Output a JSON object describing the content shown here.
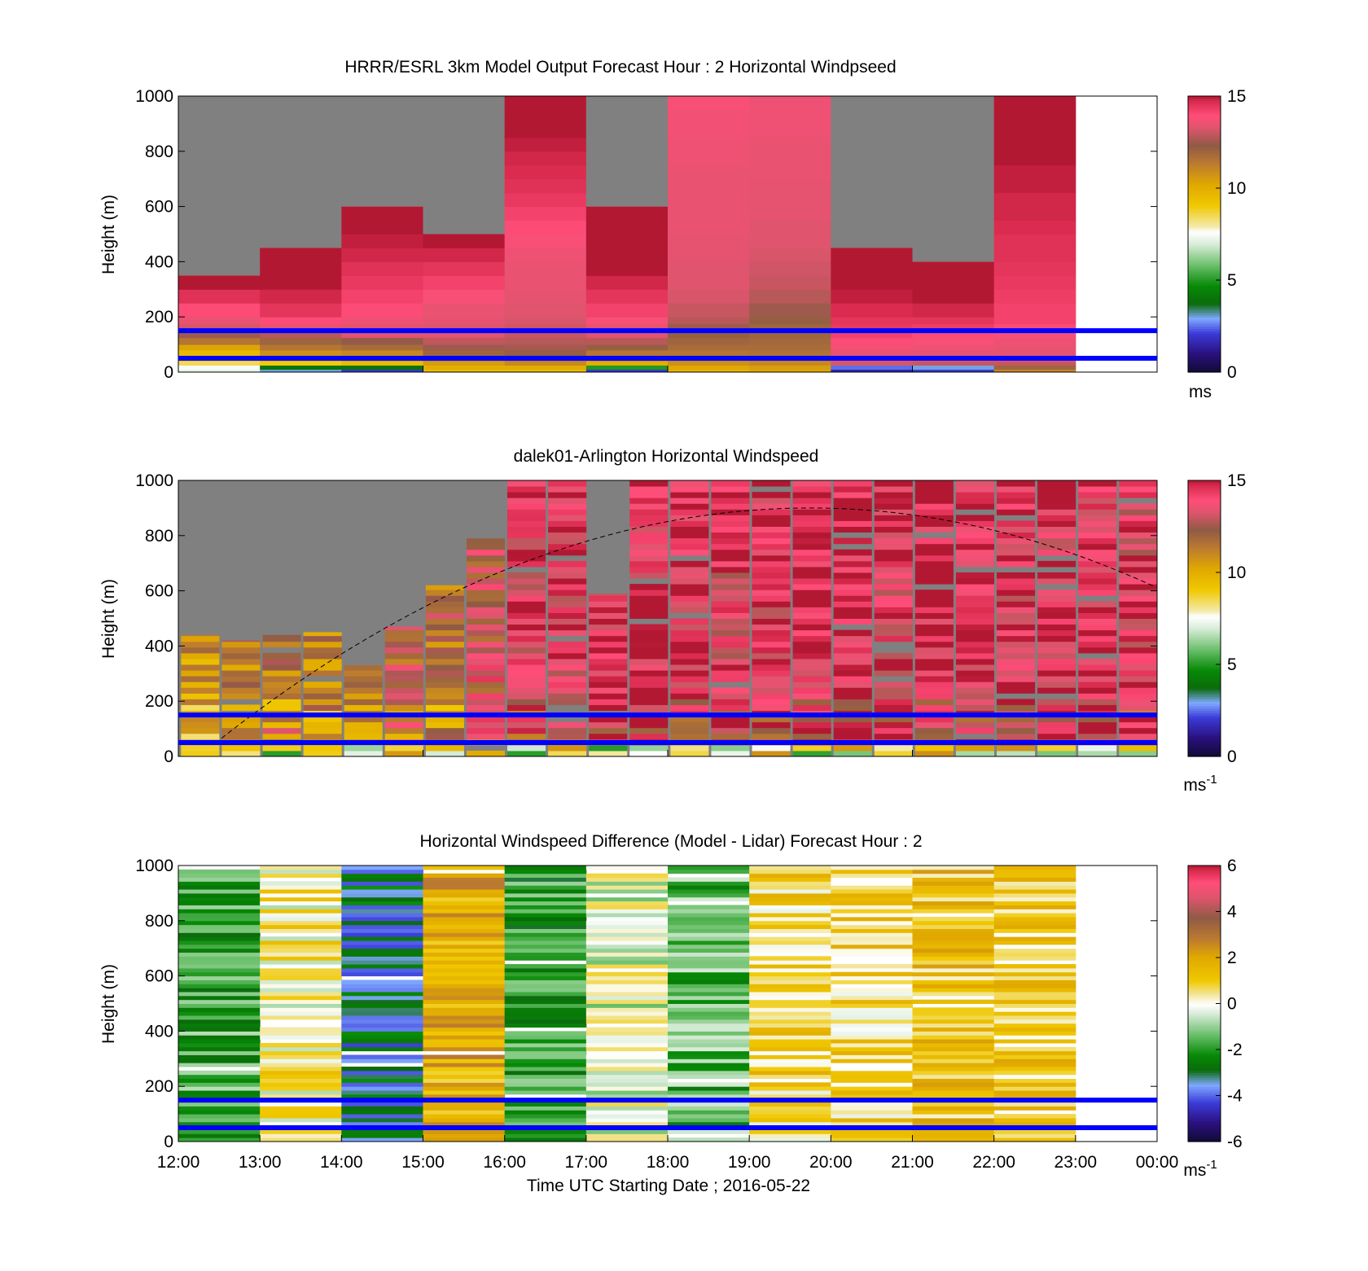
{
  "chart_data": [
    {
      "type": "heatmap",
      "title": "HRRR/ESRL 3km Model Output   Forecast Hour : 2 Horizontal Windpseed",
      "ylabel": "Height (m)",
      "xlabel": "",
      "ylim": [
        0,
        1000
      ],
      "yticks": [
        "0",
        "200",
        "400",
        "600",
        "800",
        "1000"
      ],
      "colorbar": {
        "min": 0,
        "max": 15,
        "ticks": [
          "0",
          "5",
          "10",
          "15"
        ],
        "unit": "ms",
        "unit_sup": ""
      },
      "reference_lines_m": [
        50,
        150
      ],
      "hours": [
        12,
        13,
        14,
        15,
        16,
        17,
        18,
        19,
        20,
        21,
        22
      ],
      "column_top_m": [
        350,
        450,
        600,
        500,
        1000,
        600,
        1000,
        1000,
        450,
        400,
        1000
      ],
      "levels_m": [
        10,
        25,
        40,
        60,
        80,
        100,
        125,
        150,
        175,
        200,
        250,
        300,
        350,
        400,
        450,
        500,
        550,
        600,
        650,
        700,
        750,
        800,
        850,
        900,
        950,
        1000
      ],
      "windspeed_ms": [
        [
          7.2,
          7.5,
          8.5,
          9.0,
          9.6,
          10.3,
          11.5,
          12.5,
          13.2,
          13.5,
          14.0,
          14.6,
          15.0
        ],
        [
          3.0,
          4.0,
          9.0,
          10.0,
          10.8,
          11.5,
          12.0,
          12.8,
          13.5,
          14.0,
          14.5,
          14.8,
          15.0,
          15.0,
          15.0
        ],
        [
          2.0,
          4.0,
          9.5,
          10.5,
          11.0,
          11.8,
          12.4,
          13.3,
          13.4,
          13.6,
          14.0,
          14.2,
          14.4,
          14.6,
          14.8,
          14.9,
          15.0,
          15.0
        ],
        [
          9.5,
          10.0,
          10.5,
          11.2,
          12.0,
          12.5,
          12.9,
          13.3,
          13.3,
          13.4,
          13.5,
          13.8,
          14.2,
          14.5,
          14.8,
          15.0
        ],
        [
          9.5,
          10.0,
          11.0,
          11.5,
          12.2,
          12.6,
          12.8,
          13.0,
          13.1,
          13.2,
          13.3,
          13.4,
          13.5,
          13.5,
          13.6,
          13.8,
          14.0,
          14.2,
          14.4,
          14.6,
          14.7,
          14.8,
          14.9,
          15.0,
          15.0,
          15.0
        ],
        [
          2.0,
          5.0,
          10.0,
          11.0,
          11.5,
          12.2,
          12.8,
          13.3,
          13.5,
          13.8,
          14.2,
          14.5,
          14.8,
          15.0,
          15.0,
          15.0,
          15.0,
          15.0
        ],
        [
          9.8,
          10.2,
          10.8,
          11.2,
          11.5,
          11.8,
          12.0,
          12.2,
          12.5,
          12.8,
          13.0,
          13.2,
          13.3,
          13.3,
          13.4,
          13.4,
          13.5,
          13.5,
          13.5,
          13.5,
          13.5,
          13.6,
          13.6,
          13.7,
          13.7,
          13.8
        ],
        [
          10.2,
          10.5,
          11.0,
          11.4,
          11.6,
          11.8,
          11.9,
          12.0,
          12.0,
          12.2,
          12.5,
          12.8,
          13.0,
          13.1,
          13.2,
          13.3,
          13.3,
          13.4,
          13.4,
          13.4,
          13.5,
          13.5,
          13.5,
          13.6,
          13.6,
          13.6
        ],
        [
          1.5,
          2.5,
          13.2,
          13.4,
          13.5,
          13.7,
          14.0,
          14.2,
          14.4,
          14.5,
          14.7,
          14.9,
          15.0,
          15.0,
          15.0
        ],
        [
          2.0,
          3.0,
          13.0,
          13.2,
          13.4,
          13.6,
          13.8,
          14.0,
          14.3,
          14.5,
          14.8,
          15.0,
          15.0,
          15.0
        ],
        [
          11.0,
          12.0,
          13.0,
          13.2,
          13.4,
          13.5,
          13.6,
          13.8,
          14.0,
          14.2,
          14.2,
          14.3,
          14.4,
          14.5,
          14.6,
          14.6,
          14.7,
          14.8,
          14.8,
          14.9,
          14.9,
          15.0,
          15.0,
          15.0,
          15.0,
          15.0
        ]
      ]
    },
    {
      "type": "heatmap",
      "title": "dalek01-Arlington  Horizontal Windspeed",
      "ylabel": "Height (m)",
      "xlabel": "",
      "ylim": [
        0,
        1000
      ],
      "yticks": [
        "0",
        "200",
        "400",
        "600",
        "800",
        "1000"
      ],
      "colorbar": {
        "min": 0,
        "max": 15,
        "ticks": [
          "0",
          "5",
          "10",
          "15"
        ],
        "unit": "ms",
        "unit_sup": "-1"
      },
      "reference_lines_m": [
        50,
        150
      ],
      "curve": {
        "style": "dashed",
        "peak_height_m": 900,
        "peak_time": "19:45"
      },
      "profile_times": [
        "12:05",
        "12:35",
        "13:05",
        "13:35",
        "14:05",
        "14:35",
        "15:05",
        "15:35",
        "16:05",
        "16:35",
        "17:05",
        "17:35",
        "18:05",
        "18:35",
        "19:05",
        "19:35",
        "20:05",
        "20:35",
        "21:05",
        "21:35",
        "22:05",
        "22:35",
        "23:05",
        "23:35"
      ],
      "profile_top_m": [
        440,
        420,
        440,
        450,
        330,
        470,
        620,
        790,
        1000,
        1000,
        590,
        1000,
        1000,
        1000,
        1000,
        1000,
        1000,
        1000,
        1000,
        1000,
        1000,
        1000,
        1000,
        1000
      ],
      "mean_windspeed_ms": [
        10.5,
        11.5,
        11.8,
        11.2,
        11.5,
        12.5,
        11.8,
        13.0,
        13.8,
        14.0,
        14.2,
        14.5,
        14.5,
        14.0,
        14.3,
        14.6,
        14.8,
        14.2,
        14.5,
        14.3,
        14.2,
        14.3,
        14.5,
        14.0
      ]
    },
    {
      "type": "heatmap",
      "title": "Horizontal Windspeed Difference (Model - Lidar) Forecast Hour : 2",
      "ylabel": "Height (m)",
      "xlabel": "Time UTC  Starting Date ; 2016-05-22",
      "ylim": [
        0,
        1000
      ],
      "yticks": [
        "0",
        "200",
        "400",
        "600",
        "800",
        "1000"
      ],
      "xticks": [
        "12:00",
        "13:00",
        "14:00",
        "15:00",
        "16:00",
        "17:00",
        "18:00",
        "19:00",
        "20:00",
        "21:00",
        "22:00",
        "23:00",
        "00:00"
      ],
      "colorbar": {
        "min": -6,
        "max": 6,
        "ticks": [
          "-6",
          "-4",
          "-2",
          "0",
          "2",
          "4",
          "6"
        ],
        "unit": "ms",
        "unit_sup": "-1"
      },
      "reference_lines_m": [
        50,
        150
      ],
      "hours": [
        12,
        13,
        14,
        15,
        16,
        17,
        18,
        19,
        20,
        21,
        22
      ],
      "mean_difference_ms": [
        -1.8,
        0.3,
        -3.2,
        1.8,
        -2.0,
        -0.3,
        -1.5,
        0.8,
        0.8,
        1.2,
        1.0
      ]
    }
  ]
}
